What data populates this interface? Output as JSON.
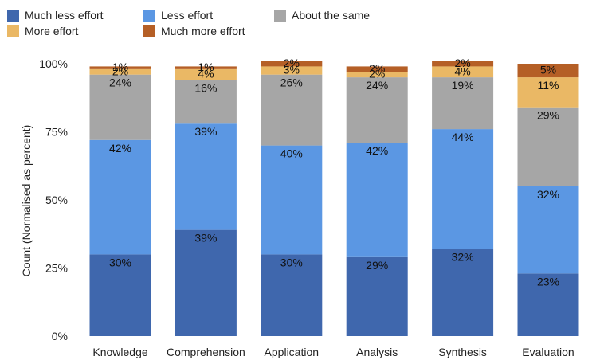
{
  "chart_data": {
    "type": "bar",
    "stacked": true,
    "normalized": true,
    "categories": [
      "Knowledge",
      "Comprehension",
      "Application",
      "Analysis",
      "Synthesis",
      "Evaluation"
    ],
    "series": [
      {
        "name": "Much less effort",
        "color": "#3f67ad",
        "values": [
          30,
          39,
          30,
          29,
          32,
          23
        ]
      },
      {
        "name": "Less effort",
        "color": "#5b97e3",
        "values": [
          42,
          39,
          40,
          42,
          44,
          32
        ]
      },
      {
        "name": "About the same",
        "color": "#a6a6a6",
        "values": [
          24,
          16,
          26,
          24,
          19,
          29
        ]
      },
      {
        "name": "More effort",
        "color": "#eab865",
        "values": [
          2,
          4,
          3,
          2,
          4,
          11
        ]
      },
      {
        "name": "Much more effort",
        "color": "#b55f26",
        "values": [
          1,
          1,
          2,
          2,
          2,
          5
        ]
      }
    ],
    "data_labels": [
      [
        "30%",
        "39%",
        "30%",
        "29%",
        "32%",
        "23%"
      ],
      [
        "42%",
        "39%",
        "40%",
        "42%",
        "44%",
        "32%"
      ],
      [
        "24%",
        "16%",
        "26%",
        "24%",
        "19%",
        "29%"
      ],
      [
        "2%",
        "4%",
        "3%",
        "2%",
        "4%",
        "11%"
      ],
      [
        "1%",
        "1%",
        "2%",
        "2%",
        "2%",
        "5%"
      ]
    ],
    "ylabel": "Count (Normalised as percent)",
    "xlabel": "",
    "ylim": [
      0,
      100
    ],
    "yticks": [
      0,
      25,
      50,
      75,
      100
    ],
    "ytick_labels": [
      "0%",
      "25%",
      "50%",
      "75%",
      "100%"
    ],
    "grid": false,
    "legend_position": "top-left"
  }
}
